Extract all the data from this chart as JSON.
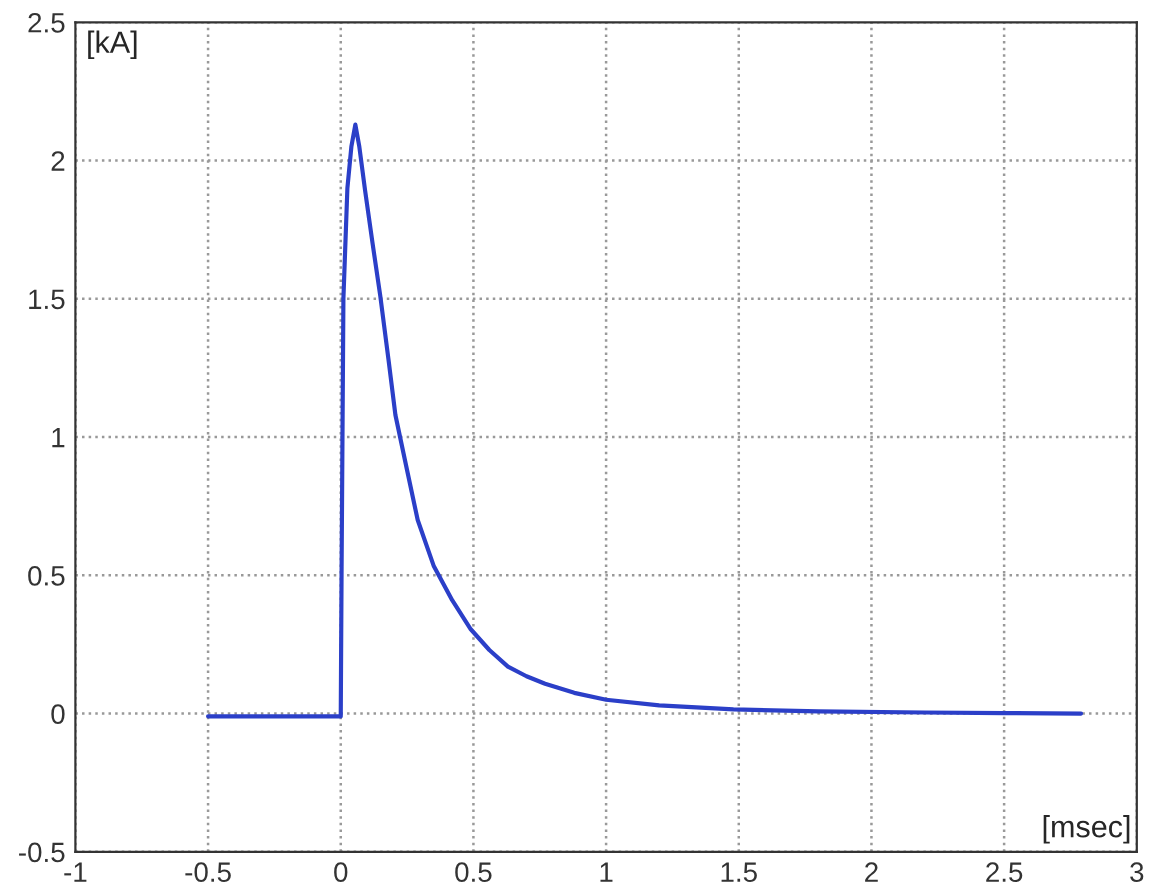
{
  "chart_data": {
    "type": "line",
    "xlabel": "[msec]",
    "ylabel": "[kA]",
    "x": [
      -0.5,
      -0.25,
      0,
      0.003,
      0.01,
      0.025,
      0.04,
      0.055,
      0.07,
      0.092,
      0.12,
      0.149,
      0.18,
      0.206,
      0.25,
      0.29,
      0.35,
      0.42,
      0.49,
      0.56,
      0.63,
      0.7,
      0.77,
      0.88,
      1.0,
      1.2,
      1.48,
      1.8,
      2.2,
      2.5,
      2.79
    ],
    "series": [
      {
        "color": "#2b3fc8",
        "values": [
          -0.01,
          -0.01,
          -0.01,
          0.5,
          1.5,
          1.9,
          2.05,
          2.13,
          2.05,
          1.89,
          1.7,
          1.51,
          1.28,
          1.08,
          0.88,
          0.7,
          0.535,
          0.41,
          0.305,
          0.23,
          0.17,
          0.135,
          0.108,
          0.075,
          0.05,
          0.03,
          0.015,
          0.008,
          0.004,
          0.002,
          0.0
        ]
      }
    ],
    "xlim": [
      -1,
      3
    ],
    "ylim": [
      -0.5,
      2.5
    ],
    "xticks": [
      -1,
      -0.5,
      0,
      0.5,
      1,
      1.5,
      2,
      2.5,
      3
    ],
    "yticks": [
      -0.5,
      0,
      0.5,
      1,
      1.5,
      2,
      2.5
    ],
    "grid": true,
    "line_style": "solid"
  }
}
